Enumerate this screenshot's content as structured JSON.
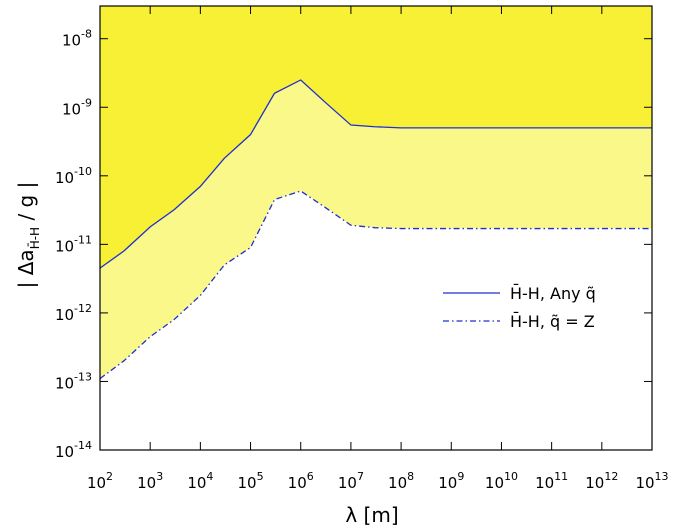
{
  "chart_data": {
    "type": "area",
    "title": "",
    "xlabel": "λ [m]",
    "ylabel": "| Δa_{H̄-H} / g |",
    "x_scale": "log",
    "y_scale": "log",
    "xlim": [
      100,
      10000000000000
    ],
    "ylim": [
      1e-14,
      3e-08
    ],
    "grid": false,
    "legend_position": "right",
    "x_ticks": [
      {
        "value": 100,
        "base": "10",
        "exp": "2"
      },
      {
        "value": 1000,
        "base": "10",
        "exp": "3"
      },
      {
        "value": 10000,
        "base": "10",
        "exp": "4"
      },
      {
        "value": 100000,
        "base": "10",
        "exp": "5"
      },
      {
        "value": 1000000,
        "base": "10",
        "exp": "6"
      },
      {
        "value": 10000000,
        "base": "10",
        "exp": "7"
      },
      {
        "value": 100000000,
        "base": "10",
        "exp": "8"
      },
      {
        "value": 1000000000,
        "base": "10",
        "exp": "9"
      },
      {
        "value": 10000000000,
        "base": "10",
        "exp": "10"
      },
      {
        "value": 100000000000,
        "base": "10",
        "exp": "11"
      },
      {
        "value": 1000000000000,
        "base": "10",
        "exp": "12"
      },
      {
        "value": 10000000000000,
        "base": "10",
        "exp": "13"
      }
    ],
    "y_ticks": [
      {
        "value": 1e-14,
        "base": "10",
        "exp": "-14"
      },
      {
        "value": 1e-13,
        "base": "10",
        "exp": "-13"
      },
      {
        "value": 1e-12,
        "base": "10",
        "exp": "-12"
      },
      {
        "value": 1e-11,
        "base": "10",
        "exp": "-11"
      },
      {
        "value": 1e-10,
        "base": "10",
        "exp": "-10"
      },
      {
        "value": 1e-09,
        "base": "10",
        "exp": "-9"
      },
      {
        "value": 1e-08,
        "base": "10",
        "exp": "-8"
      }
    ],
    "series": [
      {
        "name": "H̄-H, Any q̃",
        "style": "solid",
        "color": "#1f2fd0",
        "fill_above": "#f8f035",
        "x": [
          100,
          300,
          1000,
          3000,
          10000,
          30000,
          100000,
          300000,
          1000000,
          3000000,
          10000000,
          30000000,
          100000000,
          1000000000,
          10000000000,
          100000000000,
          1000000000000,
          10000000000000
        ],
        "y": [
          4.5e-12,
          8e-12,
          1.8e-11,
          3.2e-11,
          7e-11,
          1.8e-10,
          4e-10,
          1.6e-09,
          2.5e-09,
          1.2e-09,
          5.5e-10,
          5.2e-10,
          5e-10,
          5e-10,
          5e-10,
          5e-10,
          5e-10,
          5e-10
        ]
      },
      {
        "name": "H̄-H, q̃ = Z",
        "style": "dash-dot",
        "color": "#1f2fd0",
        "fill_above": "#fbf88a",
        "x": [
          100,
          300,
          1000,
          3000,
          10000,
          30000,
          100000,
          300000,
          1000000,
          3000000,
          10000000,
          30000000,
          100000000,
          1000000000,
          10000000000,
          100000000000,
          1000000000000,
          10000000000000
        ],
        "y": [
          1.1e-13,
          2e-13,
          4.5e-13,
          8e-13,
          1.8e-12,
          5e-12,
          9e-12,
          4.5e-11,
          6e-11,
          3.5e-11,
          1.9e-11,
          1.75e-11,
          1.7e-11,
          1.7e-11,
          1.7e-11,
          1.7e-11,
          1.7e-11,
          1.7e-11
        ]
      }
    ]
  }
}
